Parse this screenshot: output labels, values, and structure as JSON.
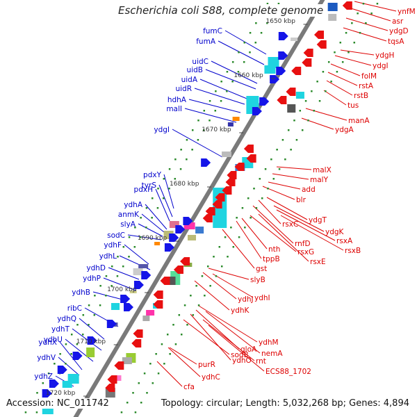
{
  "title": "Escherichia coli S88, complete genome",
  "footer": {
    "accession": "Accession: NC_011742",
    "stats": "Topology: circular; Length: 5,032,268 bp; Genes: 4,894"
  },
  "colors": {
    "backbone": "#7a7a7a",
    "forward_label": "#0000cc",
    "reverse_label": "#dd0000",
    "forward_arrow": "#1515e8",
    "reverse_arrow": "#e81010",
    "orf_dot": "#2a8a2a"
  },
  "ticks": [
    "1650 kbp",
    "1660 kbp",
    "1670 kbp",
    "1680 kbp",
    "1690 kbp",
    "1700 kbp",
    "1710 kbp",
    "1720 kbp"
  ],
  "forward_genes": [
    "fumC",
    "fumA",
    "uidC",
    "uidB",
    "uidA",
    "uidR",
    "hdhA",
    "malI",
    "ydgI",
    "pdxY",
    "tyrS",
    "pdxH",
    "ydhA",
    "anmK",
    "slyA",
    "sodC",
    "ydhF",
    "ydhL",
    "ydhD",
    "ydhP",
    "ydhB",
    "ribC",
    "ydhQ",
    "ydhT",
    "ydhU",
    "ydhX",
    "ydhV",
    "ydhZ"
  ],
  "reverse_genes": [
    "ynfM",
    "asr",
    "ydgD",
    "tqsA",
    "ydgH",
    "ydgI",
    "folM",
    "rstA",
    "rstB",
    "tus",
    "manA",
    "ydgA",
    "malX",
    "malY",
    "add",
    "blr",
    "ydgT",
    "rsxC",
    "ydgK",
    "rsxA",
    "rnfD",
    "rsxB",
    "nth",
    "rsxG",
    "tppB",
    "rsxE",
    "gst",
    "slyB",
    "ydhJ",
    "ydhI",
    "ydhK",
    "ydhM",
    "gloA",
    "nemA",
    "ydhO",
    "rnt",
    "sodB",
    "ECS88_1702",
    "ydhC",
    "purR",
    "cfa"
  ]
}
